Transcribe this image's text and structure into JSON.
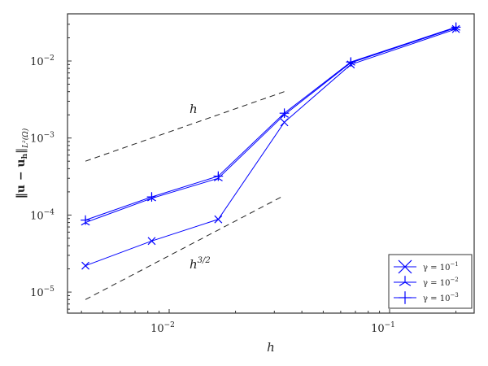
{
  "chart_data": {
    "type": "line",
    "title": "",
    "xlabel": "h",
    "ylabel": "||u - u_h||_{L^2(Ω)}",
    "xscale": "log",
    "yscale": "log",
    "xlim": [
      0.0032,
      0.27
    ],
    "ylim": [
      5.5e-06,
      0.042
    ],
    "x_ticks": [
      {
        "value": 0.01,
        "base": "10",
        "exp": "−2"
      },
      {
        "value": 0.1,
        "base": "10",
        "exp": "−1"
      }
    ],
    "y_ticks": [
      {
        "value": 1e-05,
        "base": "10",
        "exp": "−5"
      },
      {
        "value": 0.0001,
        "base": "10",
        "exp": "−4"
      },
      {
        "value": 0.001,
        "base": "10",
        "exp": "−3"
      },
      {
        "value": 0.01,
        "base": "10",
        "exp": "−2"
      }
    ],
    "grid": false,
    "legend_position": "lower right",
    "x": [
      0.00417,
      0.00833,
      0.0167,
      0.0333,
      0.0667,
      0.2
    ],
    "series": [
      {
        "name": "γ = 10^{-1}",
        "label_base": "γ = 10",
        "label_exp": "−1",
        "marker": "x",
        "color": "#0000ff",
        "values": [
          2.2e-05,
          4.6e-05,
          8.8e-05,
          0.0016,
          0.009,
          0.026
        ]
      },
      {
        "name": "γ = 10^{-2}",
        "label_base": "γ = 10",
        "label_exp": "−2",
        "marker": "2",
        "color": "#0000ff",
        "values": [
          8e-05,
          0.000165,
          0.0003,
          0.002,
          0.0095,
          0.027
        ]
      },
      {
        "name": "γ = 10^{-3}",
        "label_base": "γ = 10",
        "label_exp": "−3",
        "marker": "+",
        "color": "#0000ff",
        "values": [
          8.6e-05,
          0.000172,
          0.00032,
          0.0021,
          0.0097,
          0.0275
        ]
      }
    ],
    "reference_lines": [
      {
        "label": "h",
        "style": "dashed",
        "color": "#000000",
        "x": [
          0.00417,
          0.0333
        ],
        "y": [
          0.0005,
          0.004
        ]
      },
      {
        "label": "h^{3/2}",
        "style": "dashed",
        "color": "#000000",
        "x": [
          0.00417,
          0.0333
        ],
        "y": [
          8e-06,
          0.00018
        ]
      }
    ],
    "annotations": [
      {
        "text": "h",
        "x": 0.0125,
        "y": 0.0022
      },
      {
        "text": "h^{3/2}",
        "x": 0.0125,
        "y": 1.9e-05
      }
    ]
  },
  "labels": {
    "xlabel": "h",
    "ylabel_main": "‖u − u",
    "ylabel_sub_h": "h",
    "ylabel_close": "‖",
    "ylabel_norm": "L²(Ω)",
    "annot_h": "h",
    "annot_h32_base": "h",
    "annot_h32_exp": "3/2"
  }
}
